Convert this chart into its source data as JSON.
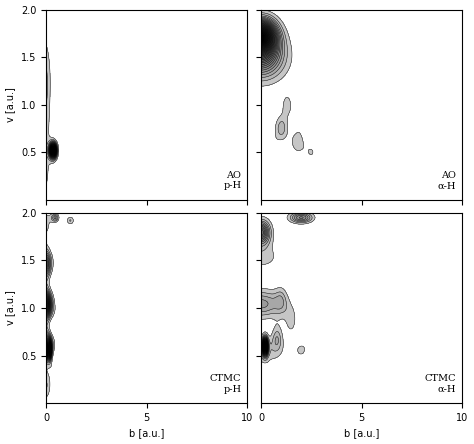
{
  "xlim": [
    0,
    10
  ],
  "ylim": [
    0,
    2
  ],
  "xlabel": "b [a.u.]",
  "ylabel": "v [a.u.]",
  "labels": [
    [
      "AO\np-H",
      "AO\nα-H"
    ],
    [
      "CTMC\np-H",
      "CTMC\nα-H"
    ]
  ],
  "n_contours": 30,
  "background_color": "#ffffff",
  "figsize": [
    4.74,
    4.44
  ],
  "dpi": 100
}
